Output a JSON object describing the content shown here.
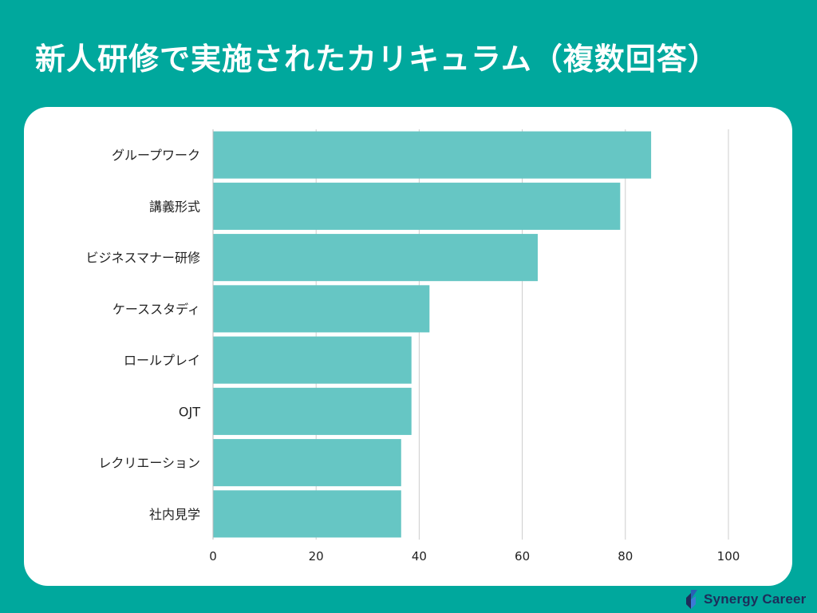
{
  "title": "新人研修で実施されたカリキュラム（複数回答）",
  "brand": {
    "name": "Synergy Career"
  },
  "colors": {
    "background": "#00a89d",
    "bar": "#66c6c4",
    "grid": "#cccccc",
    "text": "#222222",
    "brand": "#1d2d5a"
  },
  "chart_data": {
    "type": "bar",
    "orientation": "horizontal",
    "categories": [
      "グループワーク",
      "講義形式",
      "ビジネスマナー研修",
      "ケーススタディ",
      "ロールプレイ",
      "OJT",
      "レクリエーション",
      "社内見学"
    ],
    "values": [
      85,
      79,
      63,
      42,
      38.5,
      38.5,
      36.5,
      36.5
    ],
    "xlim": [
      0,
      100
    ],
    "xticks": [
      "0",
      "20",
      "40",
      "60",
      "80",
      "100"
    ],
    "grid": true,
    "legend": "none",
    "title": "新人研修で実施されたカリキュラム（複数回答）"
  }
}
